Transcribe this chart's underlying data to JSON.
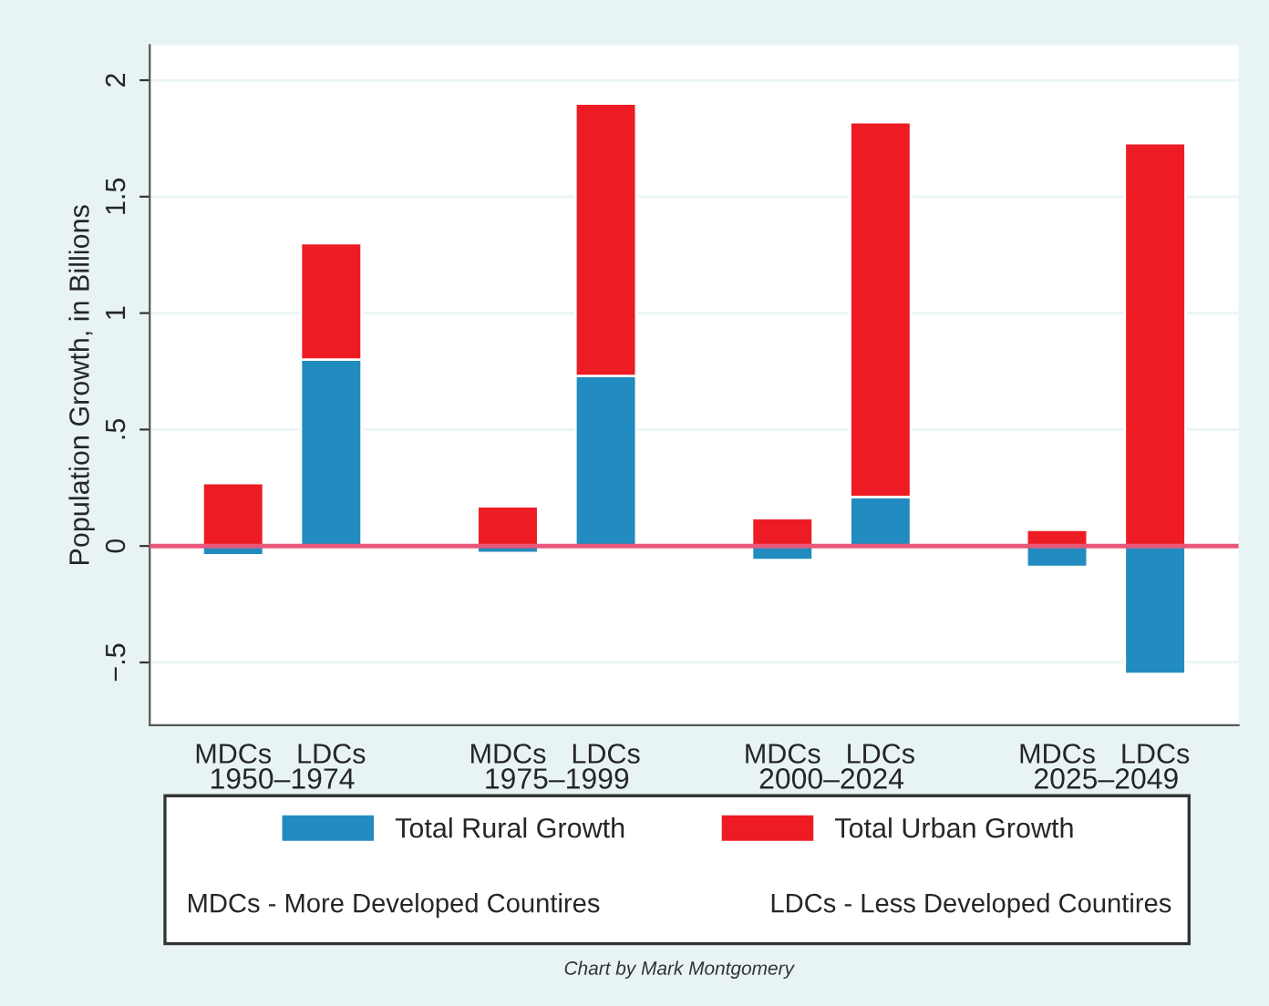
{
  "chart_data": {
    "type": "bar",
    "stacked": true,
    "ylabel": "Population Growth, in Billions",
    "categories": [
      "MDCs",
      "LDCs",
      "MDCs",
      "LDCs",
      "MDCs",
      "LDCs",
      "MDCs",
      "LDCs"
    ],
    "series": [
      {
        "name": "Total Rural Growth",
        "color": "#228bbf",
        "values": [
          -0.04,
          0.8,
          -0.03,
          0.73,
          -0.06,
          0.21,
          -0.09,
          -0.55
        ]
      },
      {
        "name": "Total Urban Growth",
        "color": "#ed1c24",
        "values": [
          0.27,
          0.5,
          0.17,
          1.17,
          0.12,
          1.61,
          0.07,
          1.73
        ]
      }
    ],
    "ylim": [
      -0.77,
      2.15
    ],
    "yticks": [
      {
        "value": -0.5,
        "label": "−.5"
      },
      0,
      {
        "value": 0.5,
        "label": ".5"
      },
      1,
      1.5,
      2
    ],
    "grid": "y",
    "legend": "bottom",
    "ref_lines": [
      {
        "axis": "y",
        "value": 0,
        "color": "#e8587a"
      }
    ],
    "annotations": [
      "1950–1974",
      "1975–1999",
      "2000–2024",
      "2025–2049",
      "MDCs - More Developed Countires",
      "LDCs - Less Developed Countires",
      "Chart by Mark Montgomery"
    ]
  }
}
